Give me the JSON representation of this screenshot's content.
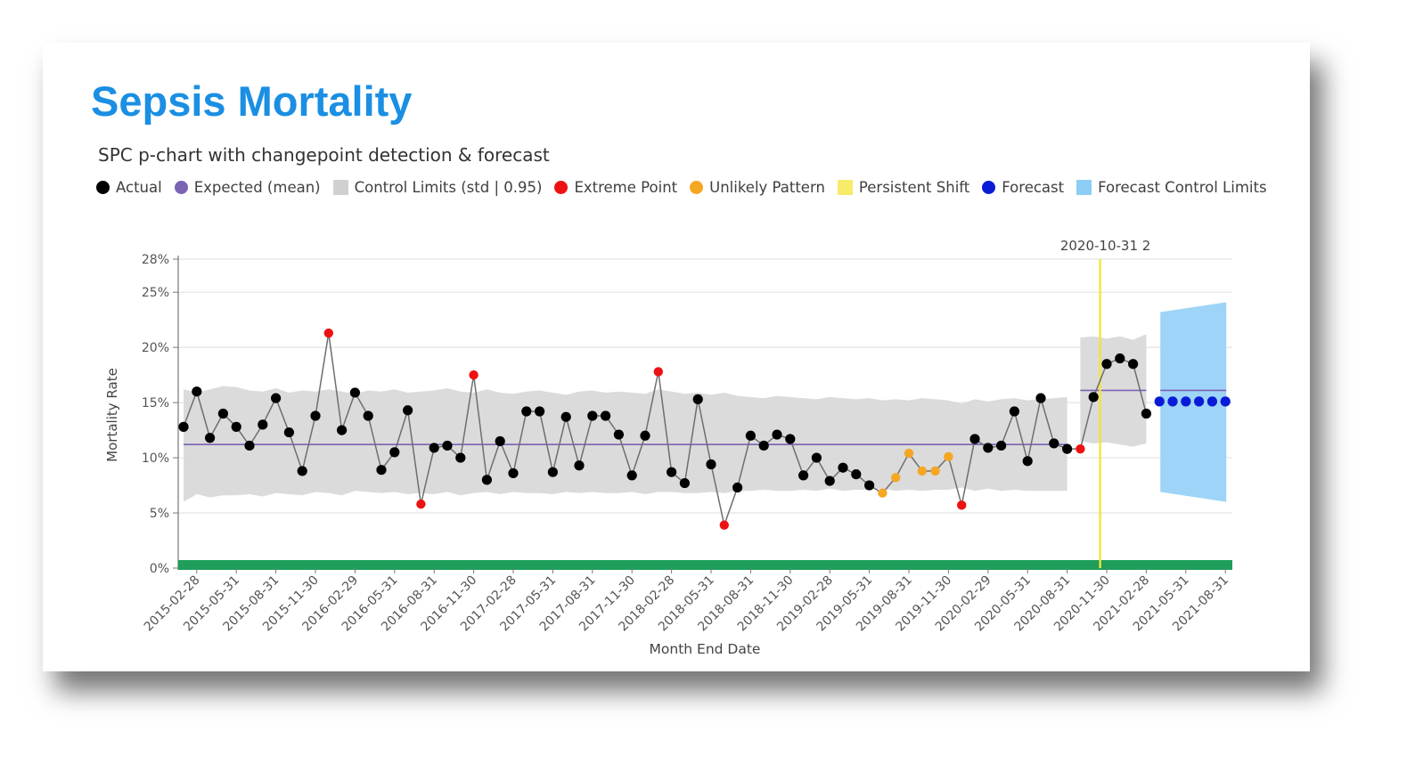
{
  "title": "Sepsis Mortality",
  "subtitle": "SPC p-chart with changepoint detection & forecast",
  "legend": [
    {
      "label": "Actual",
      "color": "#000000",
      "shape": "dot"
    },
    {
      "label": "Expected (mean)",
      "color": "#7b62b5",
      "shape": "dot"
    },
    {
      "label": "Control Limits (std | 0.95)",
      "color": "#d0d0d0",
      "shape": "square"
    },
    {
      "label": "Extreme Point",
      "color": "#ee1111",
      "shape": "dot"
    },
    {
      "label": "Unlikely Pattern",
      "color": "#f5a623",
      "shape": "dot"
    },
    {
      "label": "Persistent Shift",
      "color": "#f7ec6a",
      "shape": "square"
    },
    {
      "label": "Forecast",
      "color": "#0a1bd6",
      "shape": "dot"
    },
    {
      "label": "Forecast Control Limits",
      "color": "#8ecdf5",
      "shape": "square"
    }
  ],
  "chart_data": {
    "type": "line",
    "title": "Sepsis Mortality",
    "subtitle": "SPC p-chart with changepoint detection & forecast",
    "xlabel": "Month End Date",
    "ylabel": "Mortality Rate",
    "ylim": [
      0,
      28
    ],
    "y_ticks": [
      0,
      5,
      10,
      15,
      20,
      25,
      28
    ],
    "y_tick_labels": [
      "0%",
      "5%",
      "10%",
      "15%",
      "20%",
      "25%",
      "28%"
    ],
    "x_tick_labels": [
      "2015-02-28",
      "2015-05-31",
      "2015-08-31",
      "2015-11-30",
      "2016-02-29",
      "2016-05-31",
      "2016-08-31",
      "2016-11-30",
      "2017-02-28",
      "2017-05-31",
      "2017-08-31",
      "2017-11-30",
      "2018-02-28",
      "2018-05-31",
      "2018-08-31",
      "2018-11-30",
      "2019-02-28",
      "2019-05-31",
      "2019-08-31",
      "2019-11-30",
      "2020-02-29",
      "2020-05-31",
      "2020-08-31",
      "2020-11-30",
      "2021-02-28",
      "2021-05-31",
      "2021-08-31"
    ],
    "start_month": "2015-01-31",
    "changepoint_label": "2020-10-31 2",
    "changepoint_index": 69.5,
    "actual_values": [
      12.8,
      16.0,
      11.8,
      14.0,
      12.8,
      11.1,
      13.0,
      15.4,
      12.3,
      8.8,
      13.8,
      21.3,
      12.5,
      15.9,
      13.8,
      8.9,
      10.5,
      14.3,
      5.8,
      10.9,
      11.1,
      10.0,
      17.5,
      8.0,
      11.5,
      8.6,
      14.2,
      14.2,
      8.7,
      13.7,
      9.3,
      13.8,
      13.8,
      12.1,
      8.4,
      12.0,
      17.8,
      8.7,
      7.7,
      15.3,
      9.4,
      3.9,
      7.3,
      12.0,
      11.1,
      12.1,
      11.7,
      8.4,
      10.0,
      7.9,
      9.1,
      8.5,
      7.5,
      6.8,
      8.2,
      10.4,
      8.8,
      8.8,
      10.1,
      5.7,
      11.7,
      10.9,
      11.1,
      14.2,
      9.7,
      15.4,
      11.3,
      10.8,
      10.8,
      15.5,
      18.5,
      19.0,
      18.5,
      14.0
    ],
    "point_status": [
      "n",
      "n",
      "n",
      "n",
      "n",
      "n",
      "n",
      "n",
      "n",
      "n",
      "n",
      "extreme",
      "n",
      "n",
      "n",
      "n",
      "n",
      "n",
      "extreme",
      "n",
      "n",
      "n",
      "extreme",
      "n",
      "n",
      "n",
      "n",
      "n",
      "n",
      "n",
      "n",
      "n",
      "n",
      "n",
      "n",
      "n",
      "extreme",
      "n",
      "n",
      "n",
      "n",
      "extreme",
      "n",
      "n",
      "n",
      "n",
      "n",
      "n",
      "n",
      "n",
      "n",
      "n",
      "n",
      "unlikely",
      "unlikely",
      "unlikely",
      "unlikely",
      "unlikely",
      "unlikely",
      "extreme",
      "n",
      "n",
      "n",
      "n",
      "n",
      "n",
      "n",
      "n",
      "extreme",
      "n",
      "n",
      "n",
      "n",
      "n"
    ],
    "expected_mean": [
      {
        "from": 0,
        "to": 67,
        "value": 11.2
      },
      {
        "from": 68,
        "to": 73,
        "value": 16.1
      }
    ],
    "control_limits_upper": [
      16.2,
      15.9,
      16.2,
      16.5,
      16.4,
      16.1,
      16.0,
      16.3,
      15.9,
      16.1,
      16.0,
      16.2,
      16.0,
      15.8,
      16.1,
      16.0,
      16.2,
      15.9,
      16.0,
      16.1,
      16.3,
      16.0,
      15.9,
      16.2,
      15.9,
      15.8,
      16.0,
      16.1,
      15.9,
      15.7,
      16.0,
      16.1,
      15.9,
      16.0,
      15.9,
      15.8,
      16.2,
      16.0,
      15.8,
      15.9,
      15.7,
      15.9,
      15.6,
      15.5,
      15.4,
      15.6,
      15.5,
      15.4,
      15.3,
      15.5,
      15.4,
      15.3,
      15.4,
      15.2,
      15.3,
      15.2,
      15.4,
      15.3,
      15.2,
      14.9,
      15.3,
      15.1,
      15.3,
      15.4,
      15.2,
      15.3,
      15.4,
      15.5,
      20.9,
      21.0,
      20.8,
      21.0,
      20.7,
      21.2
    ],
    "control_limits_lower": [
      6.0,
      6.7,
      6.4,
      6.6,
      6.6,
      6.7,
      6.5,
      6.8,
      6.7,
      6.6,
      6.9,
      6.8,
      6.6,
      7.0,
      6.9,
      6.8,
      6.9,
      6.7,
      6.8,
      6.7,
      6.9,
      6.6,
      6.8,
      6.9,
      6.7,
      6.9,
      6.8,
      6.8,
      6.7,
      6.9,
      6.8,
      6.9,
      6.8,
      6.8,
      6.9,
      6.7,
      6.9,
      6.9,
      6.8,
      6.8,
      6.9,
      6.8,
      7.0,
      7.0,
      7.1,
      7.0,
      7.0,
      7.1,
      7.0,
      7.2,
      7.0,
      7.1,
      7.1,
      7.2,
      7.0,
      7.1,
      7.0,
      7.1,
      7.1,
      7.3,
      7.0,
      7.2,
      7.0,
      7.1,
      7.0,
      7.0,
      7.0,
      7.0,
      11.5,
      11.3,
      11.4,
      11.2,
      11.0,
      11.3
    ],
    "forecast_values": [
      15.1,
      15.1,
      15.1,
      15.1,
      15.1,
      15.1
    ],
    "forecast_mean": 16.1,
    "forecast_upper": [
      23.2,
      24.1
    ],
    "forecast_lower": [
      6.9,
      6.0
    ],
    "baseline_band_color": "#1e9e5a"
  }
}
